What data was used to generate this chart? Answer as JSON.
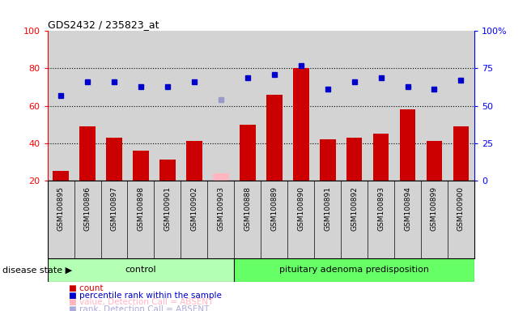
{
  "title": "GDS2432 / 235823_at",
  "samples": [
    "GSM100895",
    "GSM100896",
    "GSM100897",
    "GSM100898",
    "GSM100901",
    "GSM100902",
    "GSM100903",
    "GSM100888",
    "GSM100889",
    "GSM100890",
    "GSM100891",
    "GSM100892",
    "GSM100893",
    "GSM100894",
    "GSM100899",
    "GSM100900"
  ],
  "bar_values": [
    25,
    49,
    43,
    36,
    31,
    41,
    0,
    50,
    66,
    80,
    42,
    43,
    45,
    58,
    41,
    49
  ],
  "bar_absent": [
    false,
    false,
    false,
    false,
    false,
    false,
    true,
    false,
    false,
    false,
    false,
    false,
    false,
    false,
    false,
    false
  ],
  "absent_bar_values": [
    0,
    0,
    0,
    0,
    0,
    0,
    24,
    0,
    0,
    0,
    0,
    0,
    0,
    0,
    0,
    0
  ],
  "percentile_values": [
    57,
    66,
    66,
    63,
    63,
    66,
    0,
    69,
    71,
    77,
    61,
    66,
    69,
    63,
    61,
    67
  ],
  "percentile_absent": [
    false,
    false,
    false,
    false,
    false,
    false,
    true,
    false,
    false,
    false,
    false,
    false,
    false,
    false,
    false,
    false
  ],
  "absent_percentile_values": [
    0,
    0,
    0,
    0,
    0,
    0,
    54,
    0,
    0,
    0,
    0,
    0,
    0,
    0,
    0,
    0
  ],
  "control_count": 7,
  "groups": [
    "control",
    "pituitary adenoma predisposition"
  ],
  "ylim_left": [
    20,
    100
  ],
  "ylim_right": [
    0,
    100
  ],
  "bar_color": "#cc0000",
  "absent_bar_color": "#ffb6c1",
  "dot_color": "#0000cc",
  "absent_dot_color": "#9999cc",
  "bg_color": "#d3d3d3",
  "right_ticks": [
    0,
    25,
    50,
    75,
    100
  ],
  "right_tick_labels": [
    "0",
    "25",
    "50",
    "75",
    "100%"
  ],
  "left_ticks": [
    20,
    40,
    60,
    80,
    100
  ],
  "disease_state_label": "disease state",
  "legend_items": [
    {
      "label": "count",
      "color": "#cc0000"
    },
    {
      "label": "percentile rank within the sample",
      "color": "#0000cc"
    },
    {
      "label": "value, Detection Call = ABSENT",
      "color": "#ffb6c1"
    },
    {
      "label": "rank, Detection Call = ABSENT",
      "color": "#aaaadd"
    }
  ]
}
